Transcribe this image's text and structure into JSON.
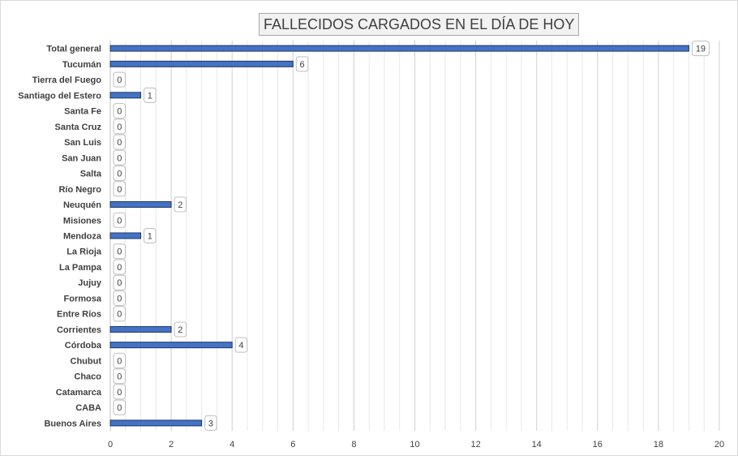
{
  "chart_data": {
    "type": "bar",
    "orientation": "horizontal",
    "title": "FALLECIDOS CARGADOS EN EL DÍA DE HOY",
    "categories": [
      "Total general",
      "Tucumán",
      "Tierra del Fuego",
      "Santiago del Estero",
      "Santa Fe",
      "Santa Cruz",
      "San Luis",
      "San Juan",
      "Salta",
      "Río Negro",
      "Neuquén",
      "Misiones",
      "Mendoza",
      "La Rioja",
      "La Pampa",
      "Jujuy",
      "Formosa",
      "Entre Ríos",
      "Corrientes",
      "Córdoba",
      "Chubut",
      "Chaco",
      "Catamarca",
      "CABA",
      "Buenos Aires"
    ],
    "values": [
      19,
      6,
      0,
      1,
      0,
      0,
      0,
      0,
      0,
      0,
      2,
      0,
      1,
      0,
      0,
      0,
      0,
      0,
      2,
      4,
      0,
      0,
      0,
      0,
      3
    ],
    "xlim": [
      0,
      20
    ],
    "x_ticks": [
      "0",
      "2",
      "4",
      "6",
      "8",
      "10",
      "12",
      "14",
      "16",
      "18",
      "20"
    ],
    "minor_grid_step": 0.5,
    "grid": true,
    "data_labels": true,
    "legend": "none",
    "colors": {
      "bar_fill": "#4472c4",
      "bar_stroke": "#1f3864",
      "grid": "#d9d9d9",
      "text": "#404040"
    }
  }
}
